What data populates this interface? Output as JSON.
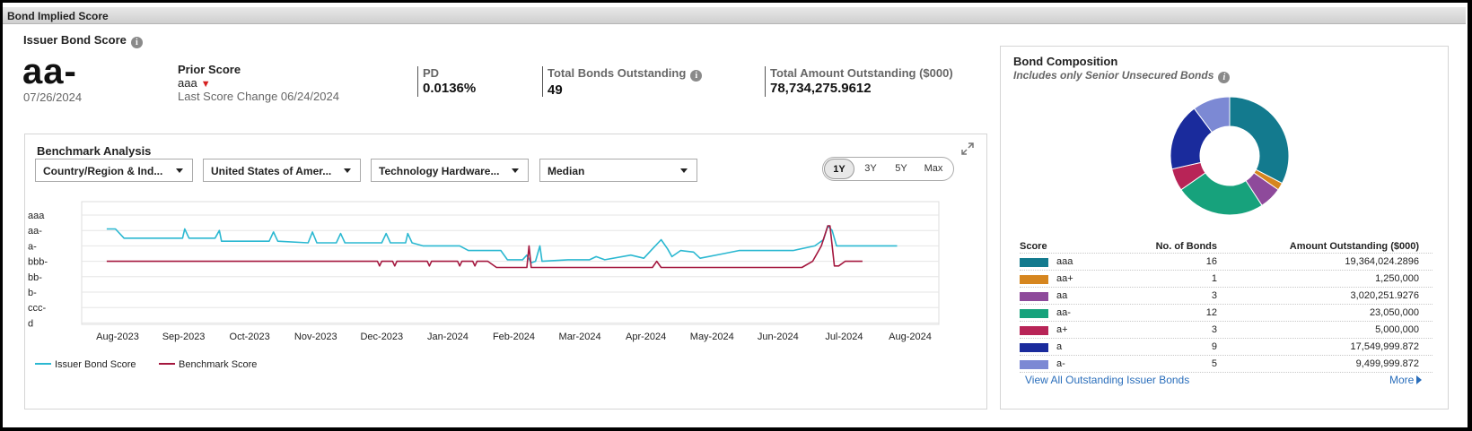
{
  "window": {
    "title": "Bond Implied Score"
  },
  "issuer": {
    "title": "Issuer Bond Score",
    "score": "aa-",
    "date": "07/26/2024",
    "prior_label": "Prior Score",
    "prior_value": "aaa",
    "last_change": "Last Score Change 06/24/2024"
  },
  "metrics": [
    {
      "label": "PD",
      "value": "0.0136%"
    },
    {
      "label": "Total Bonds Outstanding",
      "value": "49"
    },
    {
      "label": "Total Amount Outstanding ($000)",
      "value": "78,734,275.9612"
    }
  ],
  "benchmark": {
    "title": "Benchmark Analysis",
    "dropdowns": [
      "Country/Region & Ind...",
      "United States of Amer...",
      "Technology Hardware...",
      "Median"
    ],
    "ranges": [
      "1Y",
      "3Y",
      "5Y",
      "Max"
    ],
    "active_range": "1Y",
    "legend": [
      "Issuer Bond Score",
      "Benchmark Score"
    ]
  },
  "chart_data": {
    "type": "line",
    "y_categories": [
      "aaa",
      "aa-",
      "a-",
      "bbb-",
      "bb-",
      "b-",
      "ccc-",
      "d"
    ],
    "x_ticks": [
      "Aug-2023",
      "Sep-2023",
      "Oct-2023",
      "Nov-2023",
      "Dec-2023",
      "Jan-2024",
      "Feb-2024",
      "Mar-2024",
      "Apr-2024",
      "May-2024",
      "Jun-2024",
      "Jul-2024",
      "Aug-2024"
    ],
    "grid": true,
    "series": [
      {
        "name": "Issuer Bond Score",
        "color": "#2bb8d1",
        "points": [
          [
            "2023-07-27",
            0.9
          ],
          [
            "2023-07-31",
            0.9
          ],
          [
            "2023-08-04",
            1.5
          ],
          [
            "2023-08-31",
            1.5
          ],
          [
            "2023-09-01",
            0.9
          ],
          [
            "2023-09-03",
            1.5
          ],
          [
            "2023-09-15",
            1.5
          ],
          [
            "2023-09-17",
            1.0
          ],
          [
            "2023-09-18",
            1.7
          ],
          [
            "2023-10-10",
            1.7
          ],
          [
            "2023-10-12",
            1.1
          ],
          [
            "2023-10-14",
            1.7
          ],
          [
            "2023-10-28",
            1.8
          ],
          [
            "2023-10-30",
            1.1
          ],
          [
            "2023-11-01",
            1.8
          ],
          [
            "2023-11-10",
            1.8
          ],
          [
            "2023-11-12",
            1.2
          ],
          [
            "2023-11-14",
            1.8
          ],
          [
            "2023-12-01",
            1.8
          ],
          [
            "2023-12-03",
            1.2
          ],
          [
            "2023-12-05",
            1.8
          ],
          [
            "2023-12-12",
            1.8
          ],
          [
            "2023-12-13",
            1.2
          ],
          [
            "2023-12-15",
            1.8
          ],
          [
            "2023-12-20",
            2.0
          ],
          [
            "2023-12-31",
            2.0
          ],
          [
            "2024-01-06",
            2.0
          ],
          [
            "2024-01-10",
            2.3
          ],
          [
            "2024-01-25",
            2.3
          ],
          [
            "2024-01-28",
            2.9
          ],
          [
            "2024-02-04",
            2.9
          ],
          [
            "2024-02-06",
            2.6
          ],
          [
            "2024-02-08",
            3.1
          ],
          [
            "2024-02-10",
            3.0
          ],
          [
            "2024-02-12",
            2.0
          ],
          [
            "2024-02-13",
            3.0
          ],
          [
            "2024-02-25",
            2.9
          ],
          [
            "2024-03-06",
            2.9
          ],
          [
            "2024-03-09",
            2.7
          ],
          [
            "2024-03-13",
            2.9
          ],
          [
            "2024-03-25",
            2.6
          ],
          [
            "2024-03-31",
            2.8
          ],
          [
            "2024-04-04",
            2.2
          ],
          [
            "2024-04-08",
            1.6
          ],
          [
            "2024-04-11",
            2.2
          ],
          [
            "2024-04-13",
            2.7
          ],
          [
            "2024-04-17",
            2.3
          ],
          [
            "2024-04-23",
            2.4
          ],
          [
            "2024-04-26",
            2.8
          ],
          [
            "2024-05-07",
            2.5
          ],
          [
            "2024-05-14",
            2.3
          ],
          [
            "2024-05-28",
            2.3
          ],
          [
            "2024-06-08",
            2.3
          ],
          [
            "2024-06-18",
            2.0
          ],
          [
            "2024-06-22",
            1.6
          ],
          [
            "2024-06-24",
            0.7
          ],
          [
            "2024-06-26",
            1.0
          ],
          [
            "2024-06-28",
            2.0
          ],
          [
            "2024-07-26",
            2.0
          ]
        ]
      },
      {
        "name": "Benchmark Score",
        "color": "#a4173e",
        "points": [
          [
            "2023-07-27",
            3.0
          ],
          [
            "2023-11-29",
            3.0
          ],
          [
            "2023-11-30",
            3.3
          ],
          [
            "2023-12-01",
            3.0
          ],
          [
            "2023-12-06",
            3.0
          ],
          [
            "2023-12-07",
            3.3
          ],
          [
            "2023-12-08",
            3.0
          ],
          [
            "2023-12-22",
            3.0
          ],
          [
            "2023-12-23",
            3.3
          ],
          [
            "2023-12-24",
            3.0
          ],
          [
            "2024-01-05",
            3.0
          ],
          [
            "2024-01-06",
            3.3
          ],
          [
            "2024-01-07",
            3.0
          ],
          [
            "2024-01-12",
            3.0
          ],
          [
            "2024-01-13",
            3.3
          ],
          [
            "2024-01-14",
            3.0
          ],
          [
            "2024-01-19",
            3.0
          ],
          [
            "2024-01-23",
            3.4
          ],
          [
            "2024-02-06",
            3.4
          ],
          [
            "2024-02-07",
            2.0
          ],
          [
            "2024-02-08",
            3.4
          ],
          [
            "2024-04-04",
            3.4
          ],
          [
            "2024-04-06",
            3.0
          ],
          [
            "2024-04-08",
            3.4
          ],
          [
            "2024-06-12",
            3.4
          ],
          [
            "2024-06-17",
            3.0
          ],
          [
            "2024-06-21",
            2.0
          ],
          [
            "2024-06-24",
            0.7
          ],
          [
            "2024-06-25",
            0.7
          ],
          [
            "2024-06-27",
            3.3
          ],
          [
            "2024-06-29",
            3.3
          ],
          [
            "2024-07-02",
            3.0
          ],
          [
            "2024-07-10",
            3.0
          ]
        ]
      }
    ]
  },
  "composition": {
    "title": "Bond Composition",
    "subtitle": "Includes only Senior Unsecured Bonds",
    "headers": {
      "score": "Score",
      "count": "No. of Bonds",
      "amount": "Amount Outstanding ($000)"
    },
    "rows": [
      {
        "score": "aaa",
        "count": "16",
        "amount": "19,364,024.2896",
        "color": "#137a8e",
        "count_value": 16
      },
      {
        "score": "aa+",
        "count": "1",
        "amount": "1,250,000",
        "color": "#d6861f",
        "count_value": 1
      },
      {
        "score": "aa",
        "count": "3",
        "amount": "3,020,251.9276",
        "color": "#8e4a9b",
        "count_value": 3
      },
      {
        "score": "aa-",
        "count": "12",
        "amount": "23,050,000",
        "color": "#17a27c",
        "count_value": 12
      },
      {
        "score": "a+",
        "count": "3",
        "amount": "5,000,000",
        "color": "#b82457",
        "count_value": 3
      },
      {
        "score": "a",
        "count": "9",
        "amount": "17,549,999.872",
        "color": "#1a2b9c",
        "count_value": 9
      },
      {
        "score": "a-",
        "count": "5",
        "amount": "9,499,999.872",
        "color": "#7c89d4",
        "count_value": 5
      }
    ],
    "view_all": "View All Outstanding Issuer Bonds",
    "more": "More"
  }
}
